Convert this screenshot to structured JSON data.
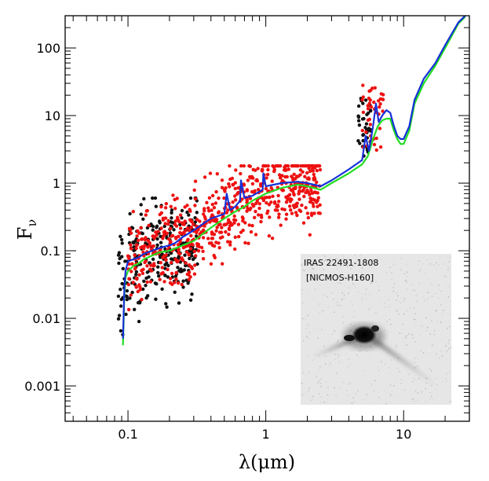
{
  "chart_data": {
    "type": "scatter",
    "xscale": "log",
    "yscale": "log",
    "xlim": [
      0.035,
      30
    ],
    "ylim": [
      0.0003,
      300
    ],
    "x_ticks": [
      {
        "value": 0.1,
        "label": "0.1"
      },
      {
        "value": 1,
        "label": "1"
      },
      {
        "value": 10,
        "label": "10"
      }
    ],
    "y_ticks": [
      {
        "value": 0.001,
        "label": "0.001"
      },
      {
        "value": 0.01,
        "label": "0.01"
      },
      {
        "value": 0.1,
        "label": "0.1"
      },
      {
        "value": 1,
        "label": "1"
      },
      {
        "value": 10,
        "label": "10"
      },
      {
        "value": 100,
        "label": "100"
      }
    ],
    "xlabel": "λ(μm)",
    "ylabel": "F",
    "ylabel_sub": "ν",
    "series": [
      {
        "name": "model-green",
        "kind": "line",
        "color": "#22dd22",
        "x": [
          0.092,
          0.094,
          0.096,
          0.1,
          0.11,
          0.12,
          0.13,
          0.15,
          0.17,
          0.2,
          0.25,
          0.3,
          0.4,
          0.5,
          0.6,
          0.7,
          0.8,
          1.0,
          1.3,
          1.7,
          2.0,
          2.5,
          3.0,
          4.0,
          5.0,
          5.5,
          6.0,
          6.5,
          7.0,
          7.5,
          8.0,
          8.5,
          9.0,
          9.5,
          10.0,
          11.0,
          12.0,
          14.0,
          17.0,
          20.0,
          25.0,
          28.0
        ],
        "y": [
          0.004,
          0.02,
          0.04,
          0.05,
          0.06,
          0.065,
          0.075,
          0.085,
          0.095,
          0.1,
          0.12,
          0.14,
          0.22,
          0.3,
          0.38,
          0.45,
          0.55,
          0.7,
          0.85,
          0.95,
          0.9,
          0.8,
          1.0,
          1.4,
          1.9,
          2.5,
          4.5,
          7.0,
          8.5,
          9.0,
          9.0,
          6.0,
          4.5,
          3.8,
          3.8,
          6.0,
          15.0,
          30.0,
          55.0,
          100.0,
          230.0,
          290.0
        ]
      },
      {
        "name": "model-blue",
        "kind": "line",
        "color": "#1530d8",
        "x": [
          0.092,
          0.094,
          0.096,
          0.1,
          0.11,
          0.12,
          0.13,
          0.15,
          0.17,
          0.2,
          0.22,
          0.25,
          0.3,
          0.35,
          0.4,
          0.5,
          0.52,
          0.55,
          0.6,
          0.65,
          0.66,
          0.7,
          0.8,
          0.9,
          0.95,
          0.96,
          1.0,
          1.3,
          1.7,
          2.0,
          2.5,
          3.0,
          4.0,
          5.0,
          5.3,
          5.6,
          6.0,
          6.3,
          6.6,
          7.0,
          7.5,
          8.0,
          8.5,
          9.0,
          9.5,
          10.0,
          11.0,
          12.0,
          14.0,
          17.0,
          20.0,
          25.0,
          28.0
        ],
        "y": [
          0.005,
          0.025,
          0.05,
          0.07,
          0.075,
          0.08,
          0.09,
          0.1,
          0.11,
          0.12,
          0.13,
          0.16,
          0.2,
          0.25,
          0.3,
          0.35,
          0.7,
          0.4,
          0.45,
          0.55,
          1.1,
          0.6,
          0.65,
          0.75,
          0.8,
          1.4,
          0.9,
          1.0,
          1.05,
          1.0,
          0.9,
          1.1,
          1.6,
          2.2,
          5.0,
          3.0,
          7.0,
          15.0,
          8.0,
          10.0,
          12.0,
          11.0,
          7.0,
          5.0,
          4.5,
          4.5,
          7.0,
          17.0,
          35.0,
          60.0,
          110.0,
          240.0,
          300.0
        ]
      },
      {
        "name": "photometry-red",
        "kind": "scatter",
        "color": "#ee1111",
        "x_range": [
          0.1,
          2.5
        ],
        "y_range": [
          0.004,
          1.8
        ],
        "x_extra": [
          5.0,
          7.2
        ],
        "y_extra": [
          3.0,
          28.0
        ]
      },
      {
        "name": "photometry-black",
        "kind": "scatter",
        "color": "#111111",
        "x_range": [
          0.085,
          0.32
        ],
        "y_range": [
          0.005,
          0.6
        ],
        "x_extra": [
          4.6,
          5.8
        ],
        "y_extra": [
          2.5,
          18.0
        ]
      }
    ],
    "inset": {
      "title_line1": "IRAS 22491-1808",
      "title_line2": "[NICMOS-H160]"
    }
  }
}
